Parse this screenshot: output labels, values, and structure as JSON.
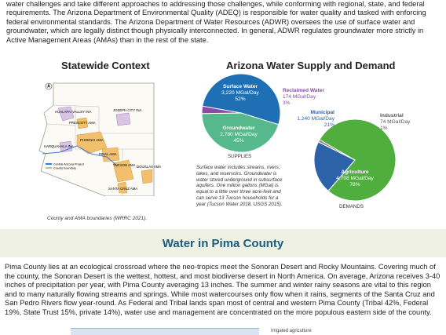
{
  "intro": {
    "text": "water challenges and take different approaches to addressing those challenges, while conforming with regional, state, and federal requirements. The Arizona Department of Environmental Quality (ADEQ) is responsible for water quality and tasked with enforcing federal environmental standards. The Arizona Department of Water Resources (ADWR) oversees the use of surface water and groundwater, which are legally distinct though physically interconnected. In general, ADWR regulates groundwater more strictly in Active Management Areas (AMAs) than in the rest of the state."
  },
  "statewide": {
    "title": "Statewide Context",
    "caption": "County and AMA boundaries (WRRC 2021).",
    "labels": {
      "hualapai": "HUALAPAI VALLEY INA",
      "joseph": "JOSEPH CITY INA",
      "prescott": "PRESCOTT AMA",
      "phoenix": "PHOENIX AMA",
      "harquahala": "HARQUAHALA INA",
      "pinal": "PINAL AMA",
      "tucson": "TUCSON AMA",
      "douglas": "DOUGLAS AMA",
      "santacruz": "SANTA CRUZ AMA",
      "legend1": "Central Arizona Project",
      "legend2": "County boundary"
    }
  },
  "supply": {
    "title": "Arizona Water Supply and Demand",
    "supplies_label": "SUPPLIES",
    "demands_label": "DEMANDS",
    "note": "Surface water includes streams, rivers, lakes, and reservoirs. Groundwater is water stored underground in subsurface aquifers. One million gallons (MGal) is equal to a little over three acre-feet and can serve 13 Tucson households for a year (Tucson Water 2018, USGS 2015).",
    "supplies": [
      {
        "name": "Surface Water",
        "value": "3,220 MGal/Day",
        "pct": "52%",
        "share": 52,
        "color": "#1f6fb4"
      },
      {
        "name": "Groundwater",
        "value": "2,780 MGal/Day",
        "pct": "45%",
        "share": 45,
        "color": "#55b98b"
      },
      {
        "name": "Reclaimed Water",
        "value": "174 MGal/Day",
        "pct": "3%",
        "share": 3,
        "color": "#8b4aa8"
      }
    ],
    "demands": [
      {
        "name": "Agriculture",
        "value": "4,708 MGal/Day",
        "pct": "78%",
        "share": 78,
        "color": "#4fae3e"
      },
      {
        "name": "Municipal",
        "value": "1,240 MGal/Day",
        "pct": "21%",
        "share": 21,
        "color": "#2c62a8"
      },
      {
        "name": "Industrial",
        "value": "74 MGal/Day",
        "pct": "1%",
        "share": 1,
        "color": "#8a8a8a"
      }
    ]
  },
  "pima": {
    "title": "Water in Pima County",
    "text": "Pima County lies at an ecological crossroad where the neo-tropics meet the Sonoran Desert and Rocky Mountains. Covering much of the county, the Sonoran Desert is the wettest, hottest, and most biodiverse desert in North America. On average, Arizona receives 3-40 inches of precipitation per year, with Pima County averaging 13 inches. The summer and winter rainy seasons are vital to this region and to many naturally flowing streams and springs. While most watercourses only flow when it rains, segments of the Santa Cruz and San Pedro Rivers flow year-round. As Federal and Tribal lands span most of central and western Pima County (Tribal 42%, Federal 19%, State Trust 15%, private 14%), water use and management are concentrated on the more populous eastern side of the county.",
    "footer_legend": "Irrigated agriculture"
  }
}
